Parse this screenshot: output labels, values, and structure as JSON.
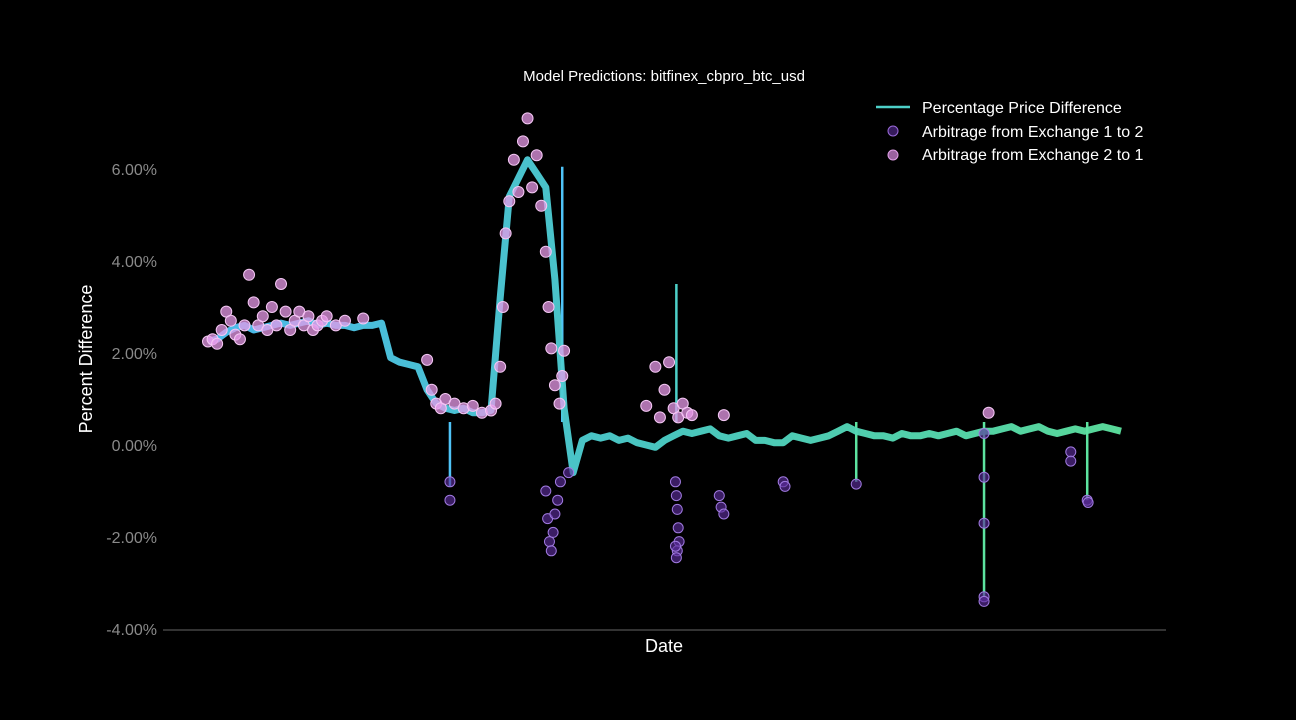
{
  "chart_data": {
    "type": "line",
    "title": "Model Predictions: bitfinex_cbpro_btc_usd",
    "xlabel": "Date",
    "ylabel": "Percent Difference",
    "ylim": [
      -4.0,
      7.5
    ],
    "y_ticks": [
      -4.0,
      -2.0,
      0.0,
      2.0,
      4.0,
      6.0
    ],
    "y_tick_labels": [
      "-4.00%",
      "-2.00%",
      "0.00%",
      "2.00%",
      "4.00%",
      "6.00%"
    ],
    "x_ticks_shown": false,
    "grid": false,
    "legend_position": "top-right",
    "colors": {
      "line_start": "#4fc3f7",
      "line_mid": "#4dd0c8",
      "line_end": "#5de3a0",
      "arb_1_to_2": "#5a2d9a",
      "arb_2_to_1": "#e79ae8"
    },
    "series": [
      {
        "name": "Percentage Price Difference",
        "type": "line",
        "x": [
          0,
          1,
          2,
          3,
          4,
          5,
          6,
          7,
          8,
          9,
          10,
          11,
          12,
          13,
          14,
          15,
          16,
          17,
          18,
          19,
          20,
          21,
          22,
          23,
          24,
          25,
          26,
          27,
          28,
          29,
          30,
          31,
          32,
          33,
          34,
          35,
          36,
          37,
          38,
          39,
          40,
          41,
          42,
          43,
          44,
          45,
          46,
          47,
          48,
          49,
          50,
          51,
          52,
          53,
          54,
          55,
          56,
          57,
          58,
          59,
          60,
          61,
          62,
          63,
          64,
          65,
          66,
          67,
          68,
          69,
          70,
          71,
          72,
          73,
          74,
          75,
          76,
          77,
          78,
          79,
          80,
          81,
          82,
          83,
          84,
          85,
          86,
          87,
          88,
          89,
          90,
          91,
          92,
          93,
          94,
          95,
          96,
          97,
          98,
          99,
          100
        ],
        "values": [
          2.25,
          2.3,
          2.45,
          2.55,
          2.6,
          2.5,
          2.55,
          2.6,
          2.65,
          2.6,
          2.65,
          2.7,
          2.6,
          2.65,
          2.6,
          2.6,
          2.55,
          2.6,
          2.6,
          2.65,
          1.9,
          1.8,
          1.75,
          1.7,
          1.2,
          0.9,
          0.8,
          0.75,
          0.8,
          0.7,
          0.7,
          0.75,
          3.2,
          5.4,
          5.8,
          6.2,
          5.9,
          5.6,
          3.6,
          0.8,
          -0.6,
          0.1,
          0.2,
          0.15,
          0.2,
          0.1,
          0.15,
          0.05,
          0.0,
          -0.05,
          0.1,
          0.2,
          0.3,
          0.25,
          0.3,
          0.35,
          0.2,
          0.15,
          0.2,
          0.25,
          0.1,
          0.1,
          0.05,
          0.05,
          0.2,
          0.15,
          0.1,
          0.15,
          0.2,
          0.3,
          0.4,
          0.3,
          0.25,
          0.2,
          0.2,
          0.15,
          0.25,
          0.2,
          0.2,
          0.25,
          0.2,
          0.25,
          0.3,
          0.2,
          0.25,
          0.3,
          0.3,
          0.35,
          0.4,
          0.3,
          0.35,
          0.4,
          0.3,
          0.25,
          0.3,
          0.35,
          0.3,
          0.35,
          0.4,
          0.35,
          0.3
        ],
        "spikes": [
          {
            "x": 38.8,
            "value": 6.05
          },
          {
            "x": 51.3,
            "value": 3.5
          },
          {
            "x": 85.0,
            "value": -3.3
          },
          {
            "x": 26.5,
            "value": -0.9
          },
          {
            "x": 96.3,
            "value": -1.2
          },
          {
            "x": 71.0,
            "value": -0.8
          }
        ]
      },
      {
        "name": "Arbitrage from Exchange 1 to 2",
        "type": "scatter",
        "x": [
          26.5,
          26.5,
          37.0,
          37.2,
          37.4,
          37.6,
          37.8,
          38.0,
          38.3,
          38.6,
          39.5,
          51.2,
          51.3,
          51.4,
          51.5,
          51.6,
          51.4,
          51.3,
          51.2,
          56.0,
          56.2,
          56.5,
          63.0,
          63.2,
          71.0,
          85.0,
          85.0,
          85.0,
          85.0,
          85.0,
          94.5,
          94.5,
          96.3,
          96.4
        ],
        "values": [
          -0.8,
          -1.2,
          -1.0,
          -1.6,
          -2.1,
          -2.3,
          -1.9,
          -1.5,
          -1.2,
          -0.8,
          -0.6,
          -0.8,
          -1.1,
          -1.4,
          -1.8,
          -2.1,
          -2.3,
          -2.45,
          -2.2,
          -1.1,
          -1.35,
          -1.5,
          -0.8,
          -0.9,
          -0.85,
          0.25,
          -0.7,
          -1.7,
          -3.3,
          -3.4,
          -0.15,
          -0.35,
          -1.2,
          -1.25
        ]
      },
      {
        "name": "Arbitrage from Exchange 2 to 1",
        "type": "scatter",
        "x": [
          0.0,
          0.5,
          1.0,
          1.5,
          2.0,
          2.5,
          3.0,
          3.5,
          4.0,
          4.5,
          5.0,
          5.5,
          6.0,
          6.5,
          7.0,
          7.5,
          8.0,
          8.5,
          9.0,
          9.5,
          10.0,
          10.5,
          11.0,
          11.5,
          12.0,
          12.5,
          13.0,
          14.0,
          15.0,
          17.0,
          24.0,
          24.5,
          25.0,
          25.5,
          26.0,
          27.0,
          28.0,
          29.0,
          30.0,
          31.0,
          31.5,
          32.0,
          32.3,
          32.6,
          33.0,
          33.5,
          34.0,
          34.5,
          35.0,
          35.5,
          36.0,
          36.5,
          37.0,
          37.3,
          37.6,
          38.0,
          38.5,
          38.8,
          39.0,
          48.0,
          49.0,
          49.5,
          50.0,
          50.5,
          51.0,
          51.5,
          52.0,
          52.5,
          53.0,
          56.5,
          85.5
        ],
        "values": [
          2.25,
          2.3,
          2.2,
          2.5,
          2.9,
          2.7,
          2.4,
          2.3,
          2.6,
          3.7,
          3.1,
          2.6,
          2.8,
          2.5,
          3.0,
          2.6,
          3.5,
          2.9,
          2.5,
          2.7,
          2.9,
          2.6,
          2.8,
          2.5,
          2.6,
          2.7,
          2.8,
          2.6,
          2.7,
          2.75,
          1.85,
          1.2,
          0.9,
          0.8,
          1.0,
          0.9,
          0.8,
          0.85,
          0.7,
          0.75,
          0.9,
          1.7,
          3.0,
          4.6,
          5.3,
          6.2,
          5.5,
          6.6,
          7.1,
          5.6,
          6.3,
          5.2,
          4.2,
          3.0,
          2.1,
          1.3,
          0.9,
          1.5,
          2.05,
          0.85,
          1.7,
          0.6,
          1.2,
          1.8,
          0.8,
          0.6,
          0.9,
          0.7,
          0.65,
          0.65,
          0.7
        ]
      }
    ]
  }
}
